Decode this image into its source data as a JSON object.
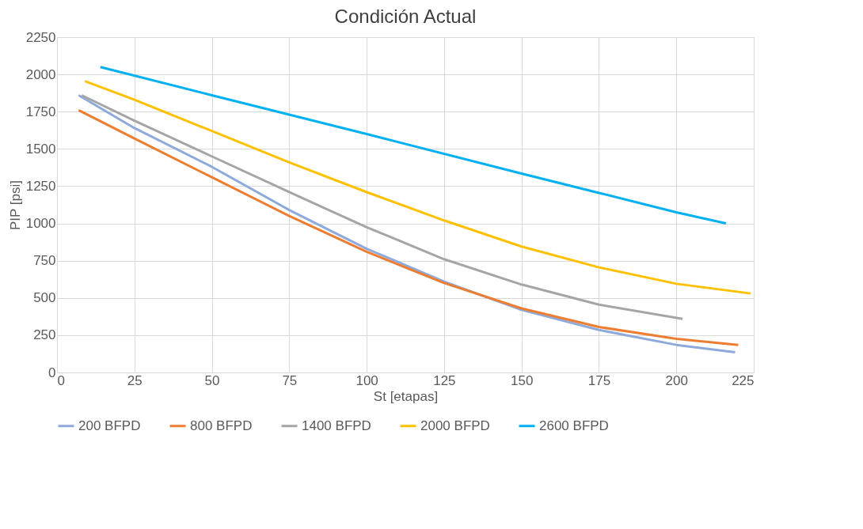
{
  "chart_data": {
    "type": "line",
    "title": "Condición Actual",
    "xlabel": "St [etapas]",
    "ylabel": "PIP [psi]",
    "xlim": [
      0,
      225
    ],
    "xticks": [
      0,
      25,
      50,
      75,
      100,
      125,
      150,
      175,
      200,
      225
    ],
    "ylim": [
      0,
      2250
    ],
    "yticks": [
      0,
      250,
      500,
      750,
      1000,
      1250,
      1500,
      1750,
      2000,
      2250
    ],
    "grid": true,
    "legend": "bottom",
    "line_style": "solid",
    "marker": "none",
    "series": [
      {
        "name": "200 BFPD",
        "color": "#8eaadb",
        "x": [
          7,
          25,
          50,
          75,
          100,
          125,
          150,
          175,
          200,
          219
        ],
        "values": [
          1860,
          1640,
          1380,
          1090,
          830,
          610,
          420,
          285,
          185,
          135
        ]
      },
      {
        "name": "800 BFPD",
        "color": "#ed7d31",
        "x": [
          7,
          25,
          50,
          75,
          100,
          125,
          150,
          175,
          200,
          220
        ],
        "values": [
          1760,
          1570,
          1310,
          1050,
          810,
          600,
          430,
          305,
          225,
          185
        ]
      },
      {
        "name": "1400 BFPD",
        "color": "#a5a5a5",
        "x": [
          8,
          25,
          50,
          75,
          100,
          125,
          150,
          175,
          202
        ],
        "values": [
          1860,
          1690,
          1450,
          1210,
          975,
          760,
          590,
          455,
          360
        ]
      },
      {
        "name": "2000 BFPD",
        "color": "#ffc000",
        "x": [
          9,
          25,
          50,
          75,
          100,
          125,
          150,
          175,
          200,
          224
        ],
        "values": [
          1955,
          1830,
          1620,
          1410,
          1210,
          1020,
          845,
          705,
          595,
          530
        ]
      },
      {
        "name": "2600 BFPD",
        "color": "#00b0f0",
        "x": [
          14,
          50,
          100,
          150,
          175,
          200,
          216
        ],
        "values": [
          2050,
          1860,
          1600,
          1335,
          1205,
          1075,
          1000
        ]
      }
    ]
  }
}
